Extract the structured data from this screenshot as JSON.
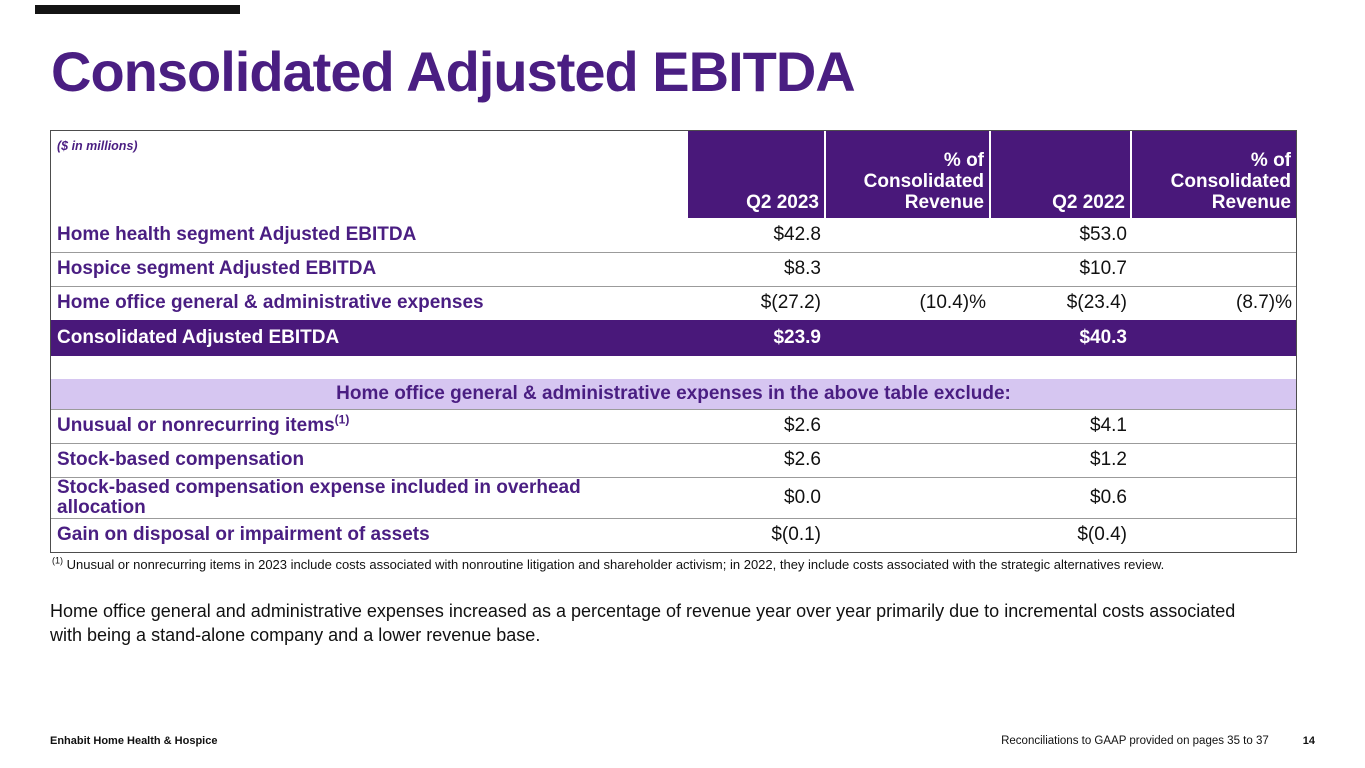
{
  "slide": {
    "title": "Consolidated Adjusted EBITDA",
    "commentary": "Home office general and administrative expenses increased as a percentage of revenue year over year primarily due to incremental costs associated with being a stand-alone company and a lower revenue base.",
    "footer": {
      "company": "Enhabit Home Health & Hospice",
      "note": "Reconciliations to GAAP provided on pages 35 to 37",
      "page_number": "14"
    },
    "colors": {
      "deep_purple": "#49187A",
      "text_purple": "#4A1E82",
      "lavender_band": "#D6C6F1",
      "accent_bar": "#141414"
    }
  },
  "table": {
    "units_note": "($ in millions)",
    "columns": [
      "Q2 2023",
      "% of Consolidated Revenue",
      "Q2 2022",
      "% of Consolidated Revenue"
    ],
    "rows": [
      {
        "label": "Home health segment Adjusted EBITDA",
        "q2_2023": "$42.8",
        "pct_2023": "",
        "q2_2022": "$53.0",
        "pct_2022": ""
      },
      {
        "label": "Hospice segment Adjusted EBITDA",
        "q2_2023": "$8.3",
        "pct_2023": "",
        "q2_2022": "$10.7",
        "pct_2022": ""
      },
      {
        "label": "Home office general & administrative expenses",
        "q2_2023": "$(27.2)",
        "pct_2023": "(10.4)%",
        "q2_2022": "$(23.4)",
        "pct_2022": "(8.7)%"
      }
    ],
    "total_row": {
      "label": "Consolidated Adjusted EBITDA",
      "q2_2023": "$23.9",
      "pct_2023": "",
      "q2_2022": "$40.3",
      "pct_2022": ""
    },
    "section_header": "Home office general & administrative expenses in the above table exclude:",
    "exclusions": [
      {
        "label": "Unusual or nonrecurring items",
        "marker": "(1)",
        "q2_2023": "$2.6",
        "pct_2023": "",
        "q2_2022": "$4.1",
        "pct_2022": ""
      },
      {
        "label": "Stock-based compensation",
        "marker": "",
        "q2_2023": "$2.6",
        "pct_2023": "",
        "q2_2022": "$1.2",
        "pct_2022": ""
      },
      {
        "label": "Stock-based compensation expense included in overhead allocation",
        "marker": "",
        "q2_2023": "$0.0",
        "pct_2023": "",
        "q2_2022": "$0.6",
        "pct_2022": ""
      },
      {
        "label": "Gain on disposal or impairment of assets",
        "marker": "",
        "q2_2023": "$(0.1)",
        "pct_2023": "",
        "q2_2022": "$(0.4)",
        "pct_2022": ""
      }
    ]
  },
  "footnote": {
    "marker": "(1)",
    "text": "Unusual or nonrecurring items in 2023 include costs associated with nonroutine litigation and shareholder activism; in 2022, they include costs associated with the strategic alternatives review."
  }
}
